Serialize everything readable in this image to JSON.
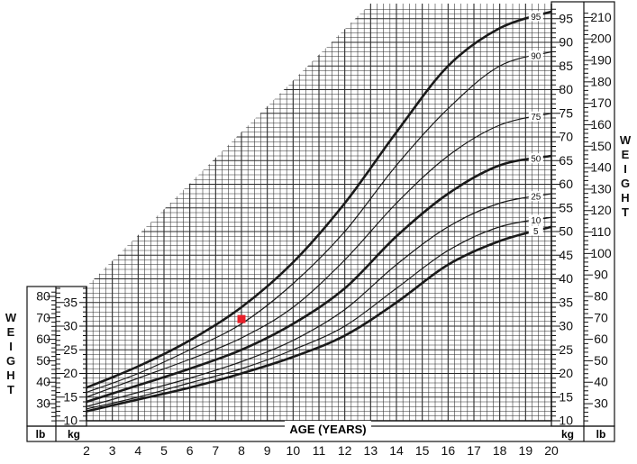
{
  "chart_data": {
    "type": "line",
    "title": "",
    "xlabel": "AGE (YEARS)",
    "ylabel": "WEIGHT",
    "x_ticks": [
      2,
      3,
      4,
      5,
      6,
      7,
      8,
      9,
      10,
      11,
      12,
      13,
      14,
      15,
      16,
      17,
      18,
      19,
      20
    ],
    "xlim": [
      2,
      20
    ],
    "kg_ticks": [
      10,
      15,
      20,
      25,
      30,
      35,
      40,
      45,
      50,
      55,
      60,
      65,
      70,
      75,
      80,
      85,
      90,
      95
    ],
    "kg_lim": [
      10,
      97
    ],
    "lb_ticks_left": [
      30,
      40,
      50,
      60,
      70,
      80
    ],
    "lb_ticks_right": [
      30,
      40,
      50,
      60,
      70,
      80,
      90,
      100,
      110,
      120,
      130,
      140,
      150,
      160,
      170,
      180,
      190,
      200,
      210
    ],
    "unit_labels": {
      "lb": "lb",
      "kg": "kg"
    },
    "grid": true,
    "legend": "none",
    "series": [
      {
        "name": "95",
        "bold": true,
        "x": [
          2,
          4,
          6,
          8,
          10,
          12,
          14,
          16,
          18,
          20
        ],
        "y": [
          17,
          21.5,
          27,
          34,
          43.5,
          56,
          71,
          85,
          93,
          96.5
        ]
      },
      {
        "name": "90",
        "bold": false,
        "x": [
          2,
          4,
          6,
          8,
          10,
          12,
          14,
          16,
          18,
          20
        ],
        "y": [
          16,
          20,
          25,
          30.5,
          39,
          50,
          64,
          76,
          85,
          88
        ]
      },
      {
        "name": "75",
        "bold": false,
        "x": [
          2,
          4,
          6,
          8,
          10,
          12,
          14,
          16,
          18,
          20
        ],
        "y": [
          15,
          19,
          23,
          27.5,
          34,
          44,
          56,
          66,
          72.5,
          75
        ]
      },
      {
        "name": "50",
        "bold": true,
        "x": [
          2,
          4,
          6,
          8,
          10,
          12,
          14,
          16,
          18,
          20
        ],
        "y": [
          14,
          17.5,
          21,
          25,
          30.5,
          38,
          49,
          58,
          64,
          66
        ]
      },
      {
        "name": "25",
        "bold": false,
        "x": [
          2,
          4,
          6,
          8,
          10,
          12,
          14,
          16,
          18,
          20
        ],
        "y": [
          13,
          16,
          19,
          22.5,
          27,
          33.5,
          43,
          51,
          56,
          58
        ]
      },
      {
        "name": "10",
        "bold": false,
        "x": [
          2,
          4,
          6,
          8,
          10,
          12,
          14,
          16,
          18,
          20
        ],
        "y": [
          12.5,
          15,
          18,
          21,
          25,
          30,
          38,
          46,
          51,
          53
        ]
      },
      {
        "name": "5",
        "bold": true,
        "x": [
          2,
          4,
          6,
          8,
          10,
          12,
          14,
          16,
          18,
          20
        ],
        "y": [
          12,
          14.5,
          17,
          20,
          23.5,
          28,
          35,
          43,
          48,
          51
        ]
      }
    ],
    "marker": {
      "x": 8,
      "y": 31.5,
      "color": "#e8202a"
    },
    "colors": {
      "grid": "#2a2a2a",
      "curve": "#1a1a1a",
      "background": "#ffffff"
    }
  }
}
